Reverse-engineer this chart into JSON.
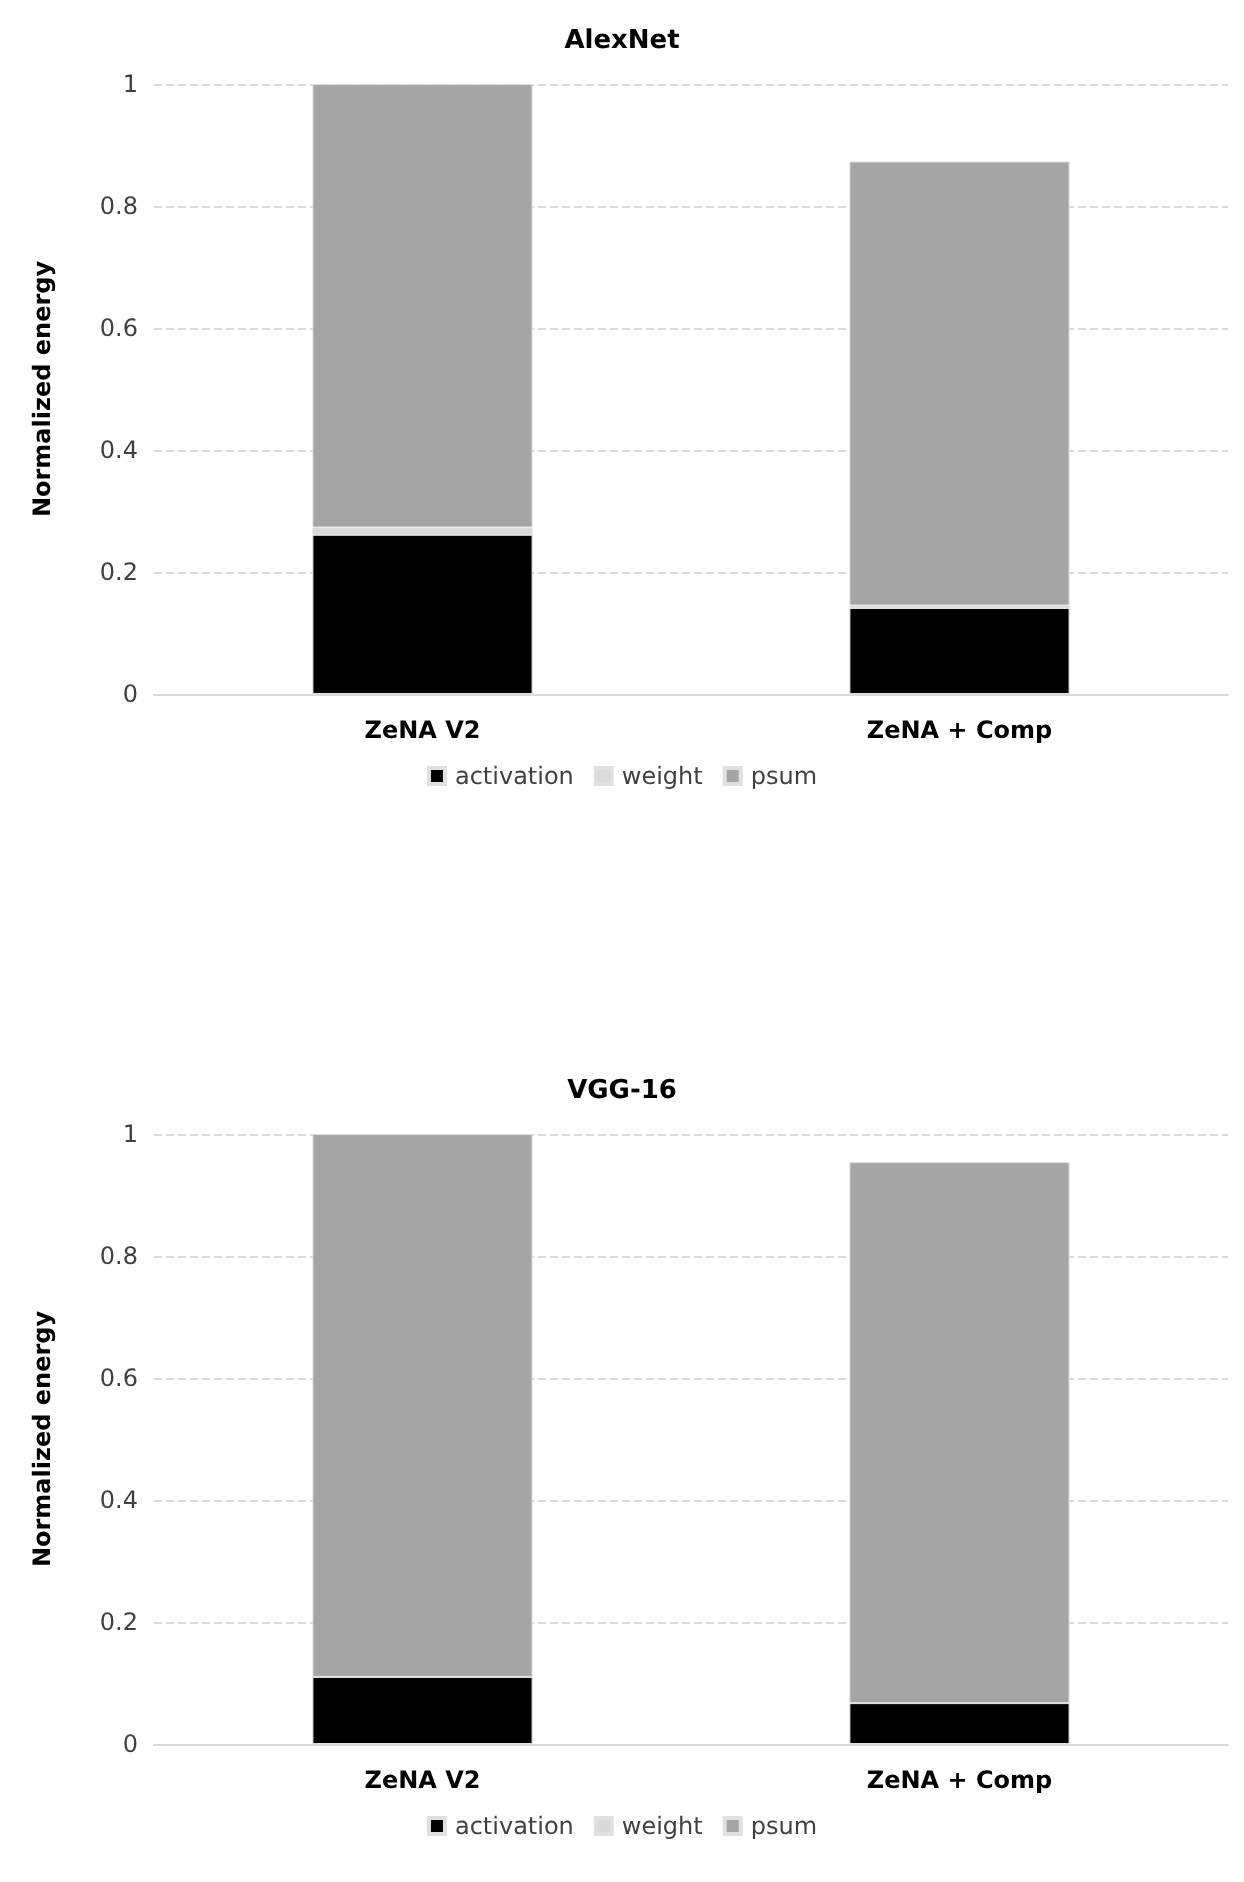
{
  "chart_data": [
    {
      "type": "bar",
      "title": "AlexNet",
      "ylabel": "Normalized energy",
      "categories": [
        "ZeNA V2",
        "ZeNA + Comp"
      ],
      "stacked": true,
      "series": [
        {
          "name": "activation",
          "color": "#000000",
          "values": [
            0.261,
            0.141
          ]
        },
        {
          "name": "weight",
          "color": "#d9d9d9",
          "values": [
            0.012,
            0.004
          ]
        },
        {
          "name": "psum",
          "color": "#a5a5a5",
          "values": [
            0.727,
            0.728
          ]
        }
      ],
      "ylim": [
        0,
        1
      ],
      "yticks": [
        0,
        0.2,
        0.4,
        0.6,
        0.8,
        1
      ],
      "grid": "y",
      "legend": "bottom"
    },
    {
      "type": "bar",
      "title": "VGG-16",
      "ylabel": "Normalized energy",
      "categories": [
        "ZeNA V2",
        "ZeNA + Comp"
      ],
      "stacked": true,
      "series": [
        {
          "name": "activation",
          "color": "#000000",
          "values": [
            0.11,
            0.067
          ]
        },
        {
          "name": "weight",
          "color": "#d9d9d9",
          "values": [
            0,
            0
          ]
        },
        {
          "name": "psum",
          "color": "#a5a5a5",
          "values": [
            0.89,
            0.887
          ]
        }
      ],
      "ylim": [
        0,
        1
      ],
      "yticks": [
        0,
        0.2,
        0.4,
        0.6,
        0.8,
        1
      ],
      "grid": "y",
      "legend": "bottom"
    }
  ]
}
